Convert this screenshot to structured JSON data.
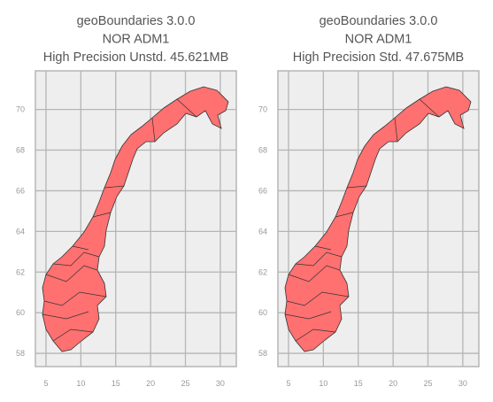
{
  "chart_data": [
    {
      "type": "map",
      "title": [
        "geoBoundaries 3.0.0",
        "NOR ADM1",
        "High Precision Unstd. 45.621MB"
      ],
      "xlim": [
        3.48,
        32.3
      ],
      "ylim": [
        57.35,
        71.9
      ],
      "xticks": [
        5,
        10,
        15,
        20,
        25,
        30
      ],
      "yticks": [
        58,
        60,
        62,
        64,
        66,
        68,
        70
      ],
      "grid": true,
      "color": "#ff7070"
    },
    {
      "type": "map",
      "title": [
        "geoBoundaries 3.0.0",
        "NOR ADM1",
        "High Precision Std. 47.675MB"
      ],
      "xlim": [
        3.48,
        32.3
      ],
      "ylim": [
        57.35,
        71.9
      ],
      "xticks": [
        5,
        10,
        15,
        20,
        25,
        30
      ],
      "yticks": [
        58,
        60,
        62,
        64,
        66,
        68,
        70
      ],
      "grid": true,
      "color": "#ff7070"
    }
  ]
}
